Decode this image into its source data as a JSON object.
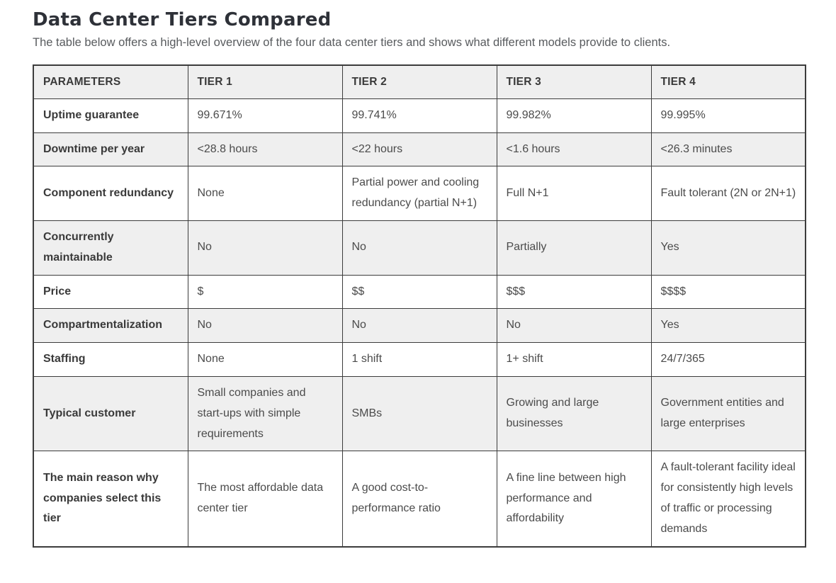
{
  "page": {
    "title": "Data Center Tiers Compared",
    "subtitle": "The table below offers a high-level overview of the four data center tiers and shows what different models provide to clients."
  },
  "colors": {
    "title_text": "#2e3138",
    "body_text": "#4b4b4b",
    "table_border": "#3c3c3c",
    "header_row_bg": "#efefef",
    "zebra_row_bg": "#efefef",
    "page_bg": "#ffffff"
  },
  "table": {
    "headers": [
      "PARAMETERS",
      "TIER 1",
      "TIER 2",
      "TIER 3",
      "TIER 4"
    ],
    "rows": [
      {
        "label": "Uptime guarantee",
        "values": [
          "99.671%",
          "99.741%",
          "99.982%",
          "99.995%"
        ]
      },
      {
        "label": "Downtime per year",
        "values": [
          "<28.8 hours",
          "<22 hours",
          "<1.6 hours",
          "<26.3 minutes"
        ]
      },
      {
        "label": "Component redundancy",
        "values": [
          "None",
          "Partial power and cooling redundancy (partial N+1)",
          "Full N+1",
          "Fault tolerant (2N or 2N+1)"
        ]
      },
      {
        "label": "Concurrently maintainable",
        "values": [
          "No",
          "No",
          "Partially",
          "Yes"
        ]
      },
      {
        "label": "Price",
        "values": [
          "$",
          "$$",
          "$$$",
          "$$$$"
        ]
      },
      {
        "label": "Compartmentalization",
        "values": [
          "No",
          "No",
          "No",
          "Yes"
        ]
      },
      {
        "label": "Staffing",
        "values": [
          "None",
          "1 shift",
          "1+ shift",
          "24/7/365"
        ]
      },
      {
        "label": "Typical customer",
        "values": [
          "Small companies and start-ups with simple requirements",
          "SMBs",
          "Growing and large businesses",
          "Government entities and large enterprises"
        ]
      },
      {
        "label": "The main reason why companies select this tier",
        "values": [
          "The most affordable data center tier",
          "A good cost-to-performance ratio",
          "A fine line between high performance and affordability",
          "A fault-tolerant facility ideal for consistently high levels of traffic or processing demands"
        ]
      }
    ]
  }
}
